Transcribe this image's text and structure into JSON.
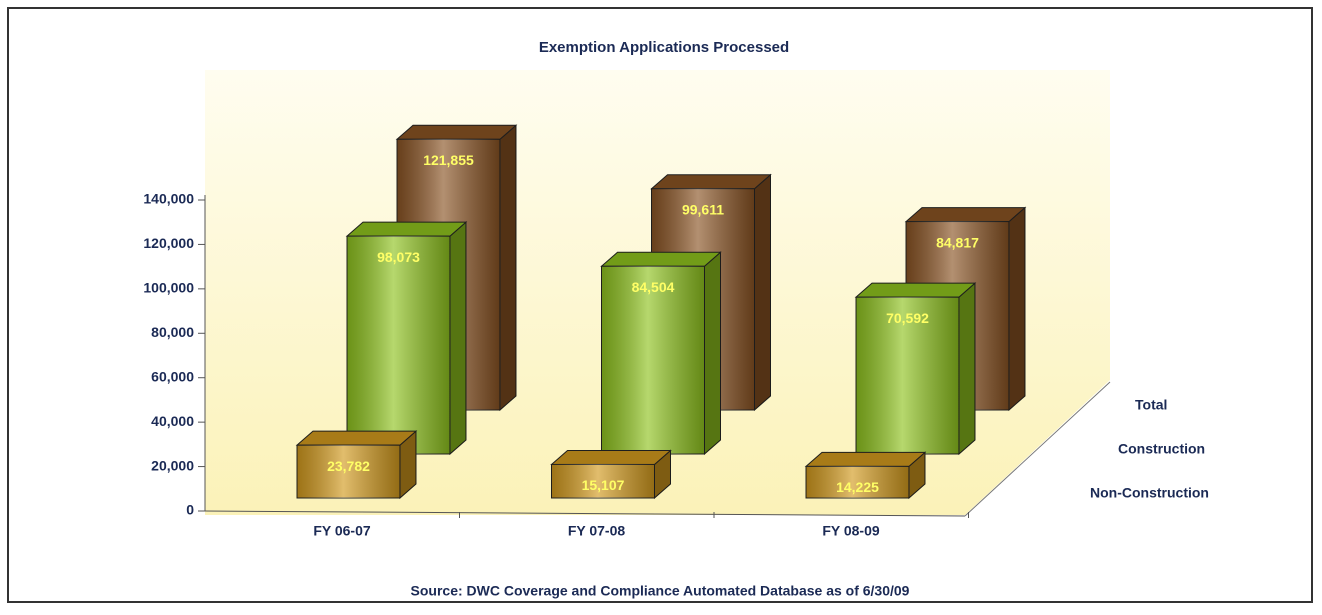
{
  "chart_data": {
    "type": "bar3d",
    "title": "Exemption Applications Processed",
    "source": "Source:  DWC Coverage and Compliance Automated Database as of 6/30/09",
    "categories": [
      "FY 06-07",
      "FY 07-08",
      "FY 08-09"
    ],
    "series": [
      {
        "name": "Non-Construction",
        "color": "#d29a1e",
        "values": [
          23782,
          15107,
          14225
        ],
        "value_labels": [
          "23,782",
          "15,107",
          "14,225"
        ]
      },
      {
        "name": "Construction",
        "color": "#8fc31f",
        "values": [
          98073,
          84504,
          70592
        ],
        "value_labels": [
          "98,073",
          "84,504",
          "70,592"
        ]
      },
      {
        "name": "Total",
        "color": "#8a5424",
        "values": [
          121855,
          99611,
          84817
        ],
        "value_labels": [
          "121,855",
          "99,611",
          "84,817"
        ]
      }
    ],
    "ylim": [
      0,
      140000
    ],
    "yticks": [
      0,
      {
        "value": 20000,
        "label": "20,000"
      },
      {
        "value": 40000,
        "label": "40,000"
      },
      {
        "value": 60000,
        "label": "60,000"
      },
      {
        "value": 80000,
        "label": "80,000"
      },
      {
        "value": 100000,
        "label": "100,000"
      },
      {
        "value": 120000,
        "label": "120,000"
      },
      {
        "value": 140000,
        "label": "140,000"
      }
    ],
    "value_label_color": "#ffff66"
  }
}
